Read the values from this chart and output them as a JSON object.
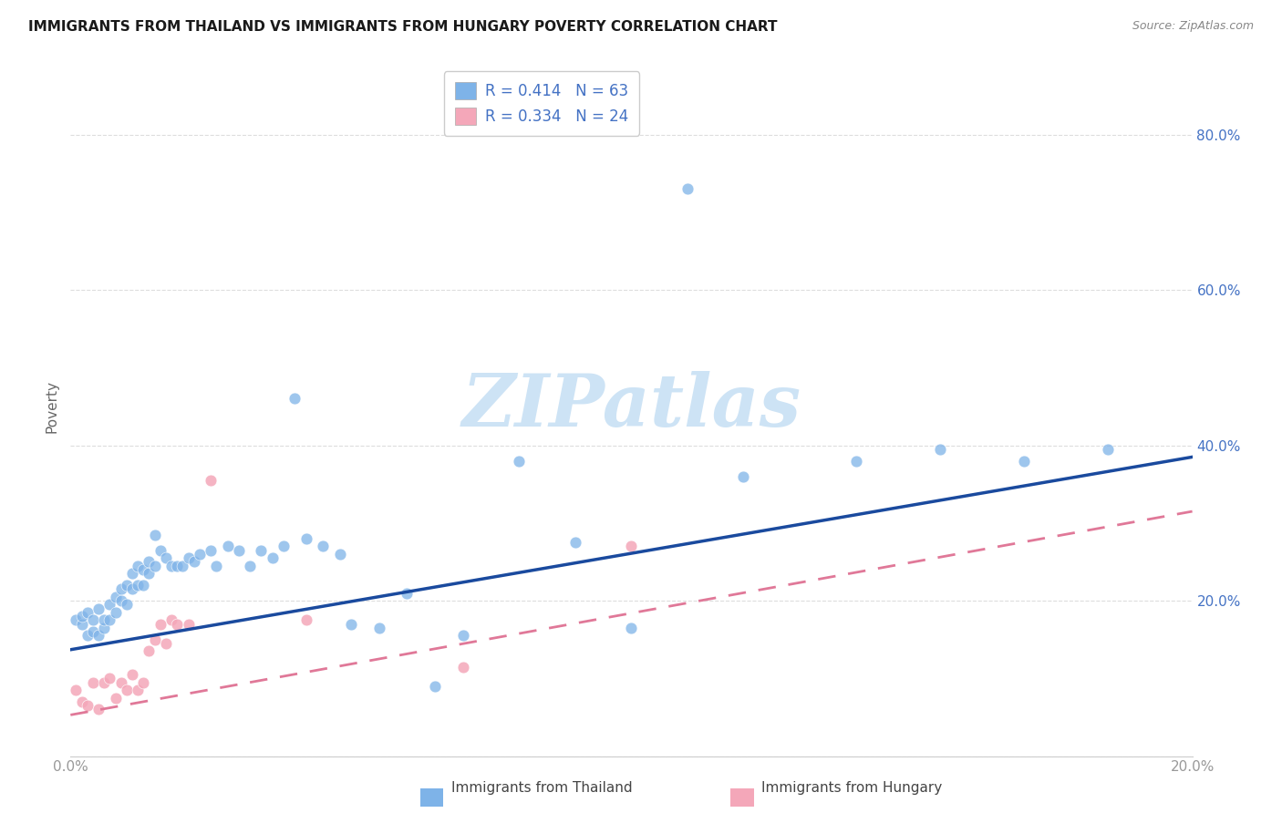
{
  "title": "IMMIGRANTS FROM THAILAND VS IMMIGRANTS FROM HUNGARY POVERTY CORRELATION CHART",
  "source": "Source: ZipAtlas.com",
  "ylabel": "Poverty",
  "xlim": [
    0.0,
    0.2
  ],
  "ylim": [
    0.0,
    0.9
  ],
  "yticks": [
    0.0,
    0.2,
    0.4,
    0.6,
    0.8
  ],
  "xticks": [
    0.0,
    0.05,
    0.1,
    0.15,
    0.2
  ],
  "xticklabels": [
    "0.0%",
    "",
    "",
    "",
    "20.0%"
  ],
  "right_yticklabels": [
    "",
    "20.0%",
    "40.0%",
    "60.0%",
    "80.0%"
  ],
  "background_color": "#ffffff",
  "grid_color": "#dddddd",
  "thailand_color": "#7eb3e8",
  "hungary_color": "#f4a7b9",
  "thailand_line_color": "#1a4a9e",
  "hungary_line_color": "#e07898",
  "thailand_R": 0.414,
  "thailand_N": 63,
  "hungary_R": 0.334,
  "hungary_N": 24,
  "watermark_text": "ZIPatlas",
  "watermark_color": "#cde3f5",
  "legend_text_color": "#4472c4",
  "title_color": "#1a1a1a",
  "source_color": "#888888",
  "axis_label_color": "#666666",
  "tick_label_color": "#999999",
  "thailand_x": [
    0.001,
    0.002,
    0.002,
    0.003,
    0.003,
    0.004,
    0.004,
    0.005,
    0.005,
    0.006,
    0.006,
    0.007,
    0.007,
    0.008,
    0.008,
    0.009,
    0.009,
    0.01,
    0.01,
    0.011,
    0.011,
    0.012,
    0.012,
    0.013,
    0.013,
    0.014,
    0.014,
    0.015,
    0.015,
    0.016,
    0.017,
    0.018,
    0.019,
    0.02,
    0.021,
    0.022,
    0.023,
    0.025,
    0.026,
    0.028,
    0.03,
    0.032,
    0.034,
    0.036,
    0.038,
    0.04,
    0.042,
    0.045,
    0.048,
    0.05,
    0.055,
    0.06,
    0.065,
    0.07,
    0.08,
    0.09,
    0.1,
    0.11,
    0.12,
    0.14,
    0.155,
    0.17,
    0.185
  ],
  "thailand_y": [
    0.175,
    0.17,
    0.18,
    0.155,
    0.185,
    0.16,
    0.175,
    0.155,
    0.19,
    0.165,
    0.175,
    0.175,
    0.195,
    0.185,
    0.205,
    0.2,
    0.215,
    0.22,
    0.195,
    0.215,
    0.235,
    0.22,
    0.245,
    0.22,
    0.24,
    0.235,
    0.25,
    0.245,
    0.285,
    0.265,
    0.255,
    0.245,
    0.245,
    0.245,
    0.255,
    0.25,
    0.26,
    0.265,
    0.245,
    0.27,
    0.265,
    0.245,
    0.265,
    0.255,
    0.27,
    0.46,
    0.28,
    0.27,
    0.26,
    0.17,
    0.165,
    0.21,
    0.09,
    0.155,
    0.38,
    0.275,
    0.165,
    0.73,
    0.36,
    0.38,
    0.395,
    0.38,
    0.395
  ],
  "hungary_x": [
    0.001,
    0.002,
    0.003,
    0.004,
    0.005,
    0.006,
    0.007,
    0.008,
    0.009,
    0.01,
    0.011,
    0.012,
    0.013,
    0.014,
    0.015,
    0.016,
    0.017,
    0.018,
    0.019,
    0.021,
    0.025,
    0.042,
    0.07,
    0.1
  ],
  "hungary_y": [
    0.085,
    0.07,
    0.065,
    0.095,
    0.06,
    0.095,
    0.1,
    0.075,
    0.095,
    0.085,
    0.105,
    0.085,
    0.095,
    0.135,
    0.15,
    0.17,
    0.145,
    0.175,
    0.17,
    0.17,
    0.355,
    0.175,
    0.115,
    0.27
  ],
  "thailand_line": {
    "x0": 0.0,
    "y0": 0.137,
    "x1": 0.2,
    "y1": 0.385
  },
  "hungary_line": {
    "x0": 0.0,
    "y0": 0.053,
    "x1": 0.2,
    "y1": 0.315
  }
}
